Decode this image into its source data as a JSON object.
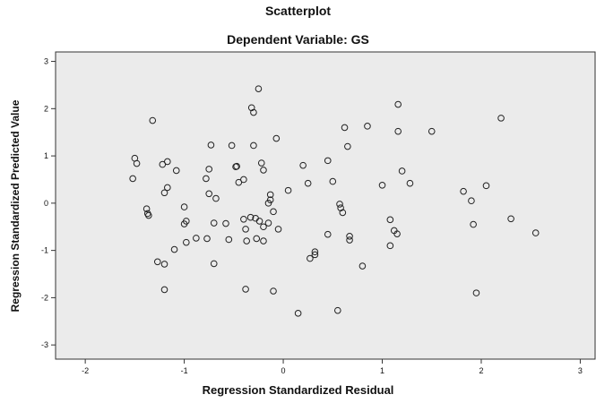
{
  "chart_data": {
    "type": "scatter",
    "title": "Scatterplot",
    "subtitle": "Dependent Variable: GS",
    "xlabel": "Regression Standardized Residual",
    "ylabel": "Regression Standardized Predicted Value",
    "xlim": [
      -2.3,
      3.15
    ],
    "ylim": [
      -3.3,
      3.2
    ],
    "x_ticks": [
      -2,
      -1,
      0,
      1,
      2,
      3
    ],
    "y_ticks": [
      -3,
      -2,
      -1,
      0,
      1,
      2,
      3
    ],
    "grid": false,
    "plot_background": "#ebebeb",
    "marker_color": "#222222",
    "points": [
      [
        -1.5,
        0.95
      ],
      [
        -1.48,
        0.84
      ],
      [
        -1.52,
        0.52
      ],
      [
        -1.32,
        1.75
      ],
      [
        -1.38,
        -0.12
      ],
      [
        -1.37,
        -0.22
      ],
      [
        -1.36,
        -0.26
      ],
      [
        -1.22,
        0.82
      ],
      [
        -1.17,
        0.88
      ],
      [
        -1.2,
        0.22
      ],
      [
        -1.17,
        0.33
      ],
      [
        -1.08,
        0.69
      ],
      [
        -1.27,
        -1.24
      ],
      [
        -1.2,
        -1.29
      ],
      [
        -1.2,
        -1.83
      ],
      [
        -1.1,
        -0.98
      ],
      [
        -1.0,
        -0.08
      ],
      [
        -0.98,
        -0.38
      ],
      [
        -1.0,
        -0.44
      ],
      [
        -0.98,
        -0.83
      ],
      [
        -0.88,
        -0.74
      ],
      [
        -0.78,
        0.52
      ],
      [
        -0.75,
        0.72
      ],
      [
        -0.73,
        1.23
      ],
      [
        -0.75,
        0.2
      ],
      [
        -0.7,
        -1.28
      ],
      [
        -0.77,
        -0.75
      ],
      [
        -0.7,
        -0.42
      ],
      [
        -0.68,
        0.1
      ],
      [
        -0.58,
        -0.43
      ],
      [
        -0.55,
        -0.77
      ],
      [
        -0.52,
        1.22
      ],
      [
        -0.48,
        0.77
      ],
      [
        -0.47,
        0.78
      ],
      [
        -0.45,
        0.44
      ],
      [
        -0.4,
        0.5
      ],
      [
        -0.4,
        -0.34
      ],
      [
        -0.38,
        -0.55
      ],
      [
        -0.37,
        -0.8
      ],
      [
        -0.38,
        -1.82
      ],
      [
        -0.32,
        2.02
      ],
      [
        -0.3,
        1.92
      ],
      [
        -0.3,
        1.22
      ],
      [
        -0.33,
        -0.3
      ],
      [
        -0.28,
        -0.32
      ],
      [
        -0.27,
        -0.75
      ],
      [
        -0.25,
        2.42
      ],
      [
        -0.24,
        -0.38
      ],
      [
        -0.22,
        0.85
      ],
      [
        -0.2,
        0.7
      ],
      [
        -0.2,
        -0.5
      ],
      [
        -0.2,
        -0.8
      ],
      [
        -0.15,
        -0.42
      ],
      [
        -0.15,
        0.0
      ],
      [
        -0.13,
        0.18
      ],
      [
        -0.13,
        0.07
      ],
      [
        -0.1,
        -0.18
      ],
      [
        -0.1,
        -1.86
      ],
      [
        -0.07,
        1.37
      ],
      [
        -0.05,
        -0.55
      ],
      [
        0.05,
        0.27
      ],
      [
        0.15,
        -2.33
      ],
      [
        0.2,
        0.8
      ],
      [
        0.25,
        0.42
      ],
      [
        0.27,
        -1.17
      ],
      [
        0.32,
        -1.09
      ],
      [
        0.32,
        -1.03
      ],
      [
        0.45,
        0.9
      ],
      [
        0.45,
        -0.66
      ],
      [
        0.5,
        0.46
      ],
      [
        0.55,
        -2.27
      ],
      [
        0.57,
        -0.02
      ],
      [
        0.58,
        -0.1
      ],
      [
        0.6,
        -0.2
      ],
      [
        0.62,
        1.6
      ],
      [
        0.65,
        1.2
      ],
      [
        0.67,
        -0.7
      ],
      [
        0.67,
        -0.78
      ],
      [
        0.8,
        -1.33
      ],
      [
        0.85,
        1.63
      ],
      [
        1.0,
        0.38
      ],
      [
        1.08,
        -0.35
      ],
      [
        1.08,
        -0.9
      ],
      [
        1.12,
        -0.58
      ],
      [
        1.15,
        -0.65
      ],
      [
        1.16,
        2.09
      ],
      [
        1.16,
        1.52
      ],
      [
        1.2,
        0.68
      ],
      [
        1.28,
        0.42
      ],
      [
        1.5,
        1.52
      ],
      [
        1.82,
        0.25
      ],
      [
        1.9,
        0.05
      ],
      [
        1.92,
        -0.45
      ],
      [
        1.95,
        -1.9
      ],
      [
        2.05,
        0.37
      ],
      [
        2.2,
        1.8
      ],
      [
        2.3,
        -0.33
      ],
      [
        2.55,
        -0.63
      ]
    ]
  }
}
